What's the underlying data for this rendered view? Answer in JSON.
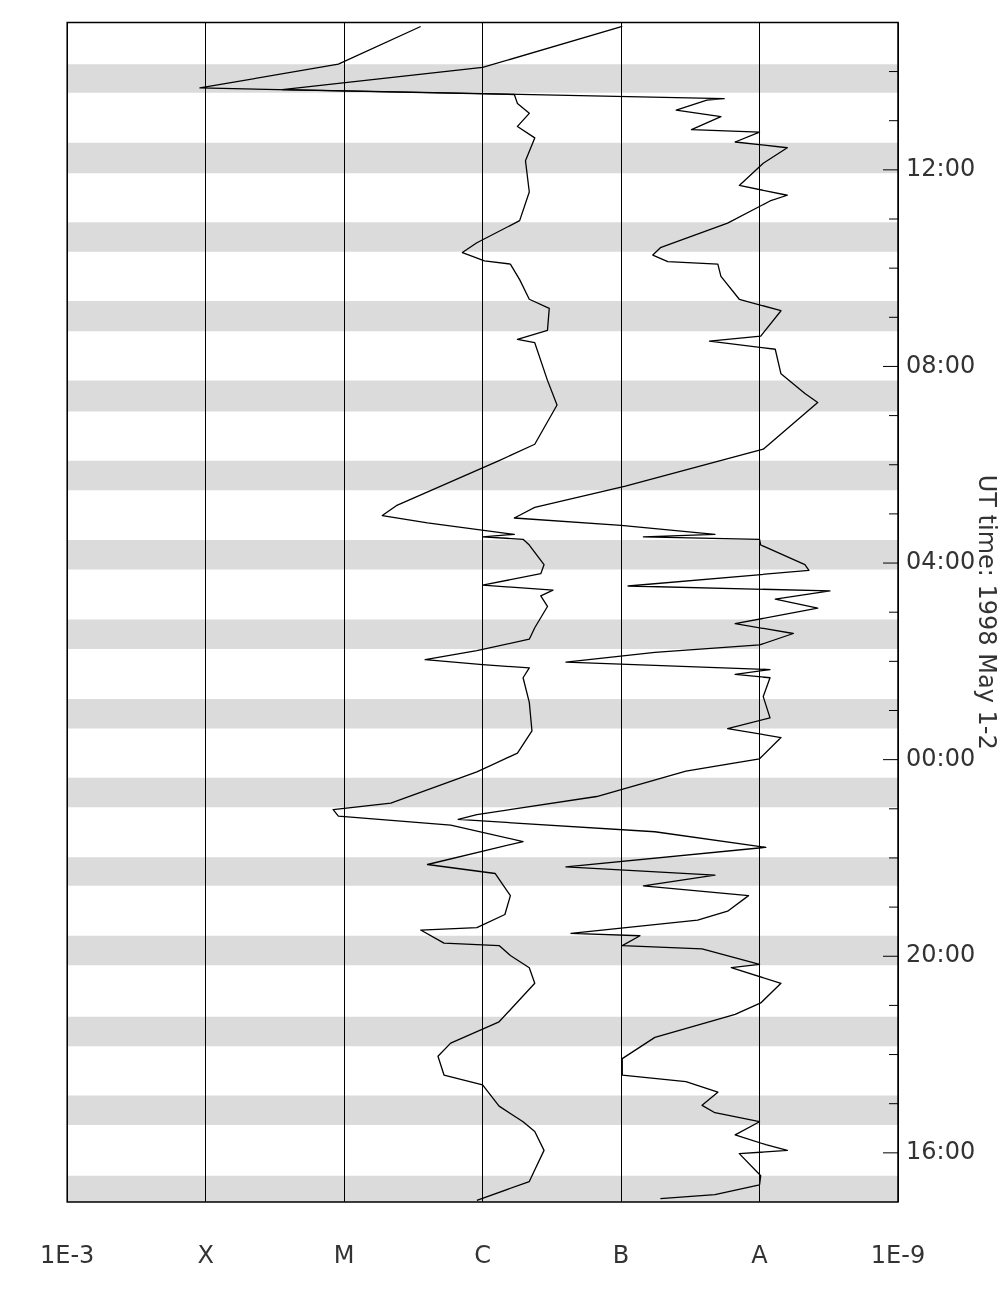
{
  "chart_data": {
    "type": "line",
    "orientation": "horizontal",
    "ylabel": "UT time: 1998 May 1-2",
    "ylim": [
      "1998-05-01T15:00",
      "1998-05-02T15:00"
    ],
    "yticks": [
      {
        "value": "1998-05-01T16:00",
        "label": "16:00"
      },
      {
        "value": "1998-05-01T17:00",
        "label": null
      },
      {
        "value": "1998-05-01T18:00",
        "label": null
      },
      {
        "value": "1998-05-01T19:00",
        "label": null
      },
      {
        "value": "1998-05-01T20:00",
        "label": "20:00"
      },
      {
        "value": "1998-05-01T21:00",
        "label": null
      },
      {
        "value": "1998-05-01T22:00",
        "label": null
      },
      {
        "value": "1998-05-01T23:00",
        "label": null
      },
      {
        "value": "1998-05-02T00:00",
        "label": "00:00"
      },
      {
        "value": "1998-05-02T01:00",
        "label": null
      },
      {
        "value": "1998-05-02T02:00",
        "label": null
      },
      {
        "value": "1998-05-02T03:00",
        "label": null
      },
      {
        "value": "1998-05-02T04:00",
        "label": "04:00"
      },
      {
        "value": "1998-05-02T05:00",
        "label": null
      },
      {
        "value": "1998-05-02T06:00",
        "label": null
      },
      {
        "value": "1998-05-02T07:00",
        "label": null
      },
      {
        "value": "1998-05-02T08:00",
        "label": "08:00"
      },
      {
        "value": "1998-05-02T09:00",
        "label": null
      },
      {
        "value": "1998-05-02T10:00",
        "label": null
      },
      {
        "value": "1998-05-02T11:00",
        "label": null
      },
      {
        "value": "1998-05-02T12:00",
        "label": "12:00"
      },
      {
        "value": "1998-05-02T13:00",
        "label": null
      },
      {
        "value": "1998-05-02T14:00",
        "label": null
      }
    ],
    "xlim": [
      0.001,
      1e-09
    ],
    "log": "x",
    "xticks": [
      {
        "value": 0.001,
        "label": "1E-3"
      },
      {
        "value": 0.0001,
        "label": "X"
      },
      {
        "value": 1e-05,
        "label": "M"
      },
      {
        "value": 1e-06,
        "label": "C"
      },
      {
        "value": 1e-07,
        "label": "B"
      },
      {
        "value": 1e-08,
        "label": "A"
      },
      {
        "value": 1e-09,
        "label": "1E-9"
      }
    ],
    "grid": "x",
    "line_style": "solid",
    "marker": "none",
    "bands": [
      {
        "axis": "y",
        "from": "1998-05-01T15:00",
        "to": "1998-05-01T15:32"
      },
      {
        "axis": "y",
        "from": "1998-05-01T16:34",
        "to": "1998-05-01T17:10"
      },
      {
        "axis": "y",
        "from": "1998-05-01T18:10",
        "to": "1998-05-01T18:46"
      },
      {
        "axis": "y",
        "from": "1998-05-01T19:49",
        "to": "1998-05-01T20:25"
      },
      {
        "axis": "y",
        "from": "1998-05-01T21:26",
        "to": "1998-05-01T22:01"
      },
      {
        "axis": "y",
        "from": "1998-05-01T23:02",
        "to": "1998-05-01T23:38"
      },
      {
        "axis": "y",
        "from": "1998-05-02T00:38",
        "to": "1998-05-02T01:14"
      },
      {
        "axis": "y",
        "from": "1998-05-02T02:15",
        "to": "1998-05-02T02:51"
      },
      {
        "axis": "y",
        "from": "1998-05-02T03:52",
        "to": "1998-05-02T04:28"
      },
      {
        "axis": "y",
        "from": "1998-05-02T05:29",
        "to": "1998-05-02T06:05"
      },
      {
        "axis": "y",
        "from": "1998-05-02T07:05",
        "to": "1998-05-02T07:43"
      },
      {
        "axis": "y",
        "from": "1998-05-02T08:43",
        "to": "1998-05-02T09:20"
      },
      {
        "axis": "y",
        "from": "1998-05-02T10:20",
        "to": "1998-05-02T10:56"
      },
      {
        "axis": "y",
        "from": "1998-05-02T11:56",
        "to": "1998-05-02T12:33"
      },
      {
        "axis": "y",
        "from": "1998-05-02T13:34",
        "to": "1998-05-02T14:09"
      }
    ],
    "series": [
      {
        "color": "#000000",
        "x": [
          "1998-05-01T15:02",
          "1998-05-01T15:25",
          "1998-05-01T16:03",
          "1998-05-01T16:26",
          "1998-05-01T16:38",
          "1998-05-01T16:57",
          "1998-05-01T17:23",
          "1998-05-01T17:35",
          "1998-05-01T17:58",
          "1998-05-01T18:14",
          "1998-05-01T18:40",
          "1998-05-01T19:27",
          "1998-05-01T19:46",
          "1998-05-01T20:01",
          "1998-05-01T20:13",
          "1998-05-01T20:16",
          "1998-05-01T20:32",
          "1998-05-01T20:35",
          "1998-05-01T20:51",
          "1998-05-01T21:14",
          "1998-05-01T21:41",
          "1998-05-01T21:52",
          "1998-05-01T22:20",
          "1998-05-01T22:40",
          "1998-05-01T22:51",
          "1998-05-01T22:59",
          "1998-05-01T23:07",
          "1998-05-01T23:45",
          "1998-05-02T00:08",
          "1998-05-02T00:35",
          "1998-05-02T01:10",
          "1998-05-02T01:40",
          "1998-05-02T01:52",
          "1998-05-02T01:56",
          "1998-05-02T02:02",
          "1998-05-02T02:13",
          "1998-05-02T02:27",
          "1998-05-02T02:41",
          "1998-05-02T03:07",
          "1998-05-02T03:20",
          "1998-05-02T03:27",
          "1998-05-02T03:33",
          "1998-05-02T03:47",
          "1998-05-02T03:58",
          "1998-05-02T04:22",
          "1998-05-02T04:29",
          "1998-05-02T04:32",
          "1998-05-02T04:35",
          "1998-05-02T04:49",
          "1998-05-02T04:58",
          "1998-05-02T05:10",
          "1998-05-02T06:05",
          "1998-05-02T06:25",
          "1998-05-02T07:13",
          "1998-05-02T07:43",
          "1998-05-02T08:29",
          "1998-05-02T08:33",
          "1998-05-02T08:44",
          "1998-05-02T09:11",
          "1998-05-02T09:22",
          "1998-05-02T09:46",
          "1998-05-02T10:05",
          "1998-05-02T10:09",
          "1998-05-02T10:19",
          "1998-05-02T10:31",
          "1998-05-02T10:58",
          "1998-05-02T11:33",
          "1998-05-02T12:11",
          "1998-05-02T12:39",
          "1998-05-02T12:53",
          "1998-05-02T13:09",
          "1998-05-02T13:21",
          "1998-05-02T13:32",
          "1998-05-02T13:40",
          "1998-05-02T14:09",
          "1998-05-02T14:55"
        ],
        "values": [
          1.1e-06,
          4.6e-07,
          3.6e-07,
          4.2e-07,
          5.1e-07,
          7.6e-07,
          1e-06,
          1.9e-06,
          2.1e-06,
          1.7e-06,
          7.6e-07,
          4.2e-07,
          4.6e-07,
          6.3e-07,
          7.6e-07,
          1.9e-06,
          2.8e-06,
          1.1e-06,
          6.9e-07,
          6.3e-07,
          8.1e-07,
          2.5e-06,
          5.1e-07,
          1.7e-06,
          1.1e-05,
          1.2e-05,
          4.6e-06,
          1.1e-06,
          5.6e-07,
          4.4e-07,
          4.6e-07,
          5.1e-07,
          4.6e-07,
          1e-06,
          2.6e-06,
          1.1e-06,
          4.6e-07,
          4.2e-07,
          3.4e-07,
          3.8e-07,
          3.1e-07,
          1e-06,
          3.8e-07,
          3.6e-07,
          4.6e-07,
          5.1e-07,
          1e-06,
          5.9e-07,
          2.5e-06,
          5.3e-06,
          4.2e-06,
          7.6e-07,
          4.2e-07,
          2.9e-07,
          3.4e-07,
          4.2e-07,
          5.6e-07,
          3.4e-07,
          3.3e-07,
          4.6e-07,
          5.4e-07,
          6.3e-07,
          9.7e-07,
          1.4e-06,
          1.1e-06,
          5.4e-07,
          4.6e-07,
          4.9e-07,
          4.2e-07,
          5.6e-07,
          4.6e-07,
          5.6e-07,
          5.9e-07,
          0.00011,
          1.1e-05,
          2.8e-06
        ]
      },
      {
        "color": "#000000",
        "x": [
          "1998-05-01T15:04",
          "1998-05-01T15:09",
          "1998-05-01T15:21",
          "1998-05-01T15:32",
          "1998-05-01T15:59",
          "1998-05-01T16:03",
          "1998-05-01T16:10",
          "1998-05-01T16:22",
          "1998-05-01T16:38",
          "1998-05-01T16:49",
          "1998-05-01T16:58",
          "1998-05-01T17:14",
          "1998-05-01T17:27",
          "1998-05-01T17:35",
          "1998-05-01T17:55",
          "1998-05-01T18:21",
          "1998-05-01T18:49",
          "1998-05-01T19:03",
          "1998-05-01T19:27",
          "1998-05-01T19:46",
          "1998-05-01T19:50",
          "1998-05-01T20:09",
          "1998-05-01T20:13",
          "1998-05-01T20:25",
          "1998-05-01T20:28",
          "1998-05-01T20:44",
          "1998-05-01T20:55",
          "1998-05-01T21:14",
          "1998-05-01T21:26",
          "1998-05-01T21:39",
          "1998-05-01T21:49",
          "1998-05-01T22:13",
          "1998-05-01T22:32",
          "1998-05-01T22:47",
          "1998-05-01T22:53",
          "1998-05-01T23:15",
          "1998-05-01T23:46",
          "1998-05-02T00:01",
          "1998-05-02T00:27",
          "1998-05-02T00:38",
          "1998-05-02T00:51",
          "1998-05-02T01:17",
          "1998-05-02T01:40",
          "1998-05-02T01:44",
          "1998-05-02T01:50",
          "1998-05-02T01:59",
          "1998-05-02T02:11",
          "1998-05-02T02:20",
          "1998-05-02T02:34",
          "1998-05-02T02:46",
          "1998-05-02T03:05",
          "1998-05-02T03:16",
          "1998-05-02T03:26",
          "1998-05-02T03:32",
          "1998-05-02T03:51",
          "1998-05-02T03:58",
          "1998-05-02T04:22",
          "1998-05-02T04:29",
          "1998-05-02T04:32",
          "1998-05-02T04:35",
          "1998-05-02T04:46",
          "1998-05-02T04:55",
          "1998-05-02T05:08",
          "1998-05-02T05:34",
          "1998-05-02T06:19",
          "1998-05-02T07:16",
          "1998-05-02T07:27",
          "1998-05-02T07:51",
          "1998-05-02T08:21",
          "1998-05-02T08:31",
          "1998-05-02T08:37",
          "1998-05-02T09:08",
          "1998-05-02T09:22",
          "1998-05-02T09:50",
          "1998-05-02T10:05",
          "1998-05-02T10:08",
          "1998-05-02T10:16",
          "1998-05-02T10:25",
          "1998-05-02T10:55",
          "1998-05-02T11:22",
          "1998-05-02T11:29",
          "1998-05-02T11:41",
          "1998-05-02T12:08",
          "1998-05-02T12:27",
          "1998-05-02T12:34",
          "1998-05-02T12:46",
          "1998-05-02T12:49",
          "1998-05-02T13:05",
          "1998-05-02T13:13",
          "1998-05-02T13:25",
          "1998-05-02T13:27",
          "1998-05-02T13:38",
          "1998-05-02T14:05",
          "1998-05-02T14:55"
        ],
        "values": [
          5.2e-08,
          2.1e-08,
          1e-08,
          9.8e-09,
          1.4e-08,
          6.3e-09,
          9e-09,
          1.5e-08,
          1e-08,
          2.1e-08,
          2.6e-08,
          2e-08,
          3.4e-08,
          9.8e-08,
          9.8e-08,
          5.7e-08,
          1.5e-08,
          9.8e-09,
          7e-09,
          1.6e-08,
          1e-08,
          2.6e-08,
          9.8e-08,
          7.3e-08,
          2.3e-07,
          2.8e-08,
          1.7e-08,
          1.2e-08,
          6.9e-08,
          2.1e-08,
          2.5e-07,
          9e-09,
          5.7e-08,
          1.5e-06,
          1.1e-06,
          1.5e-07,
          3.4e-08,
          1e-08,
          7e-09,
          1.7e-08,
          8.4e-09,
          9.4e-09,
          8.4e-09,
          1.5e-08,
          8.4e-09,
          2.5e-07,
          5.7e-08,
          1e-08,
          5.7e-09,
          1.5e-08,
          3.8e-09,
          7.7e-09,
          3.1e-09,
          8.9e-08,
          4.4e-09,
          4.7e-09,
          9.8e-09,
          1e-08,
          6.9e-08,
          2.1e-08,
          1e-07,
          5.9e-07,
          4.2e-07,
          9.3e-08,
          9.4e-09,
          3.8e-09,
          4.7e-09,
          7e-09,
          7.7e-09,
          2.3e-08,
          9.8e-09,
          7e-09,
          1.4e-08,
          1.9e-08,
          2e-08,
          4.6e-08,
          5.9e-08,
          5.2e-08,
          1.7e-08,
          8.4e-09,
          6.3e-09,
          1.4e-08,
          9.4e-09,
          6.3e-09,
          1.5e-08,
          1e-08,
          3.1e-08,
          1.9e-08,
          4e-08,
          2.4e-08,
          1.8e-08,
          2.8e-05,
          1e-06,
          9.8e-08
        ]
      }
    ]
  }
}
